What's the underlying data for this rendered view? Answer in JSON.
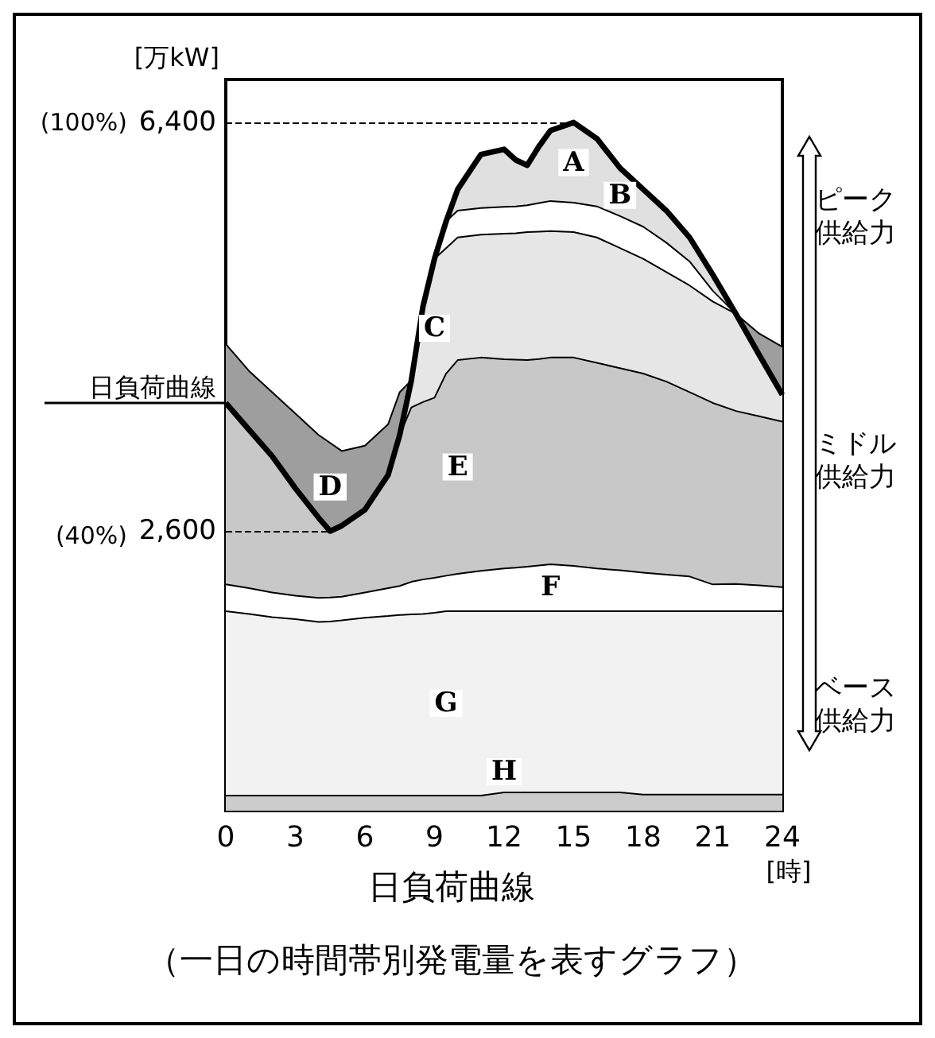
{
  "chart_data": {
    "type": "area",
    "stacked": true,
    "title": "日負荷曲線",
    "subtitle": "（一日の時間帯別発電量を表すグラフ）",
    "xlabel": "[時]",
    "ylabel": "[万kW]",
    "x": [
      0,
      1,
      2,
      3,
      4,
      4.5,
      5,
      6,
      7,
      7.5,
      8,
      8.5,
      9,
      9.5,
      10,
      11,
      12,
      12.5,
      13,
      13.5,
      14,
      15,
      16,
      17,
      18,
      19,
      20,
      21,
      22,
      23,
      24
    ],
    "series": [
      {
        "name": "H",
        "color": "#cccccc",
        "values": [
          140,
          140,
          140,
          140,
          140,
          140,
          140,
          140,
          140,
          140,
          140,
          140,
          140,
          140,
          140,
          140,
          170,
          170,
          170,
          170,
          170,
          170,
          170,
          170,
          150,
          150,
          150,
          150,
          150,
          150,
          150
        ]
      },
      {
        "name": "G",
        "color": "#f2f2f2",
        "values": [
          1715,
          1690,
          1660,
          1641,
          1615,
          1620,
          1630,
          1655,
          1670,
          1680,
          1685,
          1690,
          1700,
          1715,
          1715,
          1715,
          1685,
          1685,
          1685,
          1685,
          1685,
          1685,
          1685,
          1685,
          1705,
          1705,
          1705,
          1705,
          1705,
          1705,
          1705
        ]
      },
      {
        "name": "F",
        "color": "#ffffff",
        "values": [
          249,
          240,
          229,
          219,
          224,
          222,
          220,
          234,
          260,
          270,
          303,
          320,
          325,
          330,
          348,
          375,
          398,
          405,
          415,
          425,
          437,
          422,
          398,
          380,
          358,
          340,
          323,
          249,
          254,
          240,
          224
        ]
      },
      {
        "name": "E",
        "color": "#c8c8c8",
        "values": [
          1688,
          1473,
          1267,
          998,
          745,
          618,
          660,
          770,
          1052,
          1404,
          1622,
          1650,
          1676,
          1880,
          1987,
          1984,
          1946,
          1935,
          1920,
          1920,
          1922,
          1937,
          1912,
          1880,
          1852,
          1795,
          1714,
          1688,
          1608,
          1573,
          1539
        ]
      },
      {
        "name": "C",
        "color": "#e6e6e6",
        "values": [
          null,
          null,
          null,
          null,
          null,
          null,
          null,
          null,
          null,
          0,
          250,
          886,
          1292,
          1167,
          1141,
          1142,
          1167,
          1175,
          1191,
          1185,
          1177,
          1167,
          1166,
          1117,
          1068,
          1019,
          992,
          943,
          903,
          571,
          249
        ]
      },
      {
        "name": "D",
        "color": "#9e9e9e",
        "values": [
          547,
          547,
          596,
          695,
          770,
          820,
          695,
          596,
          472,
          398,
          0,
          null,
          null,
          null,
          null,
          null,
          null,
          null,
          null,
          null,
          null,
          null,
          null,
          null,
          null,
          null,
          null,
          null,
          0,
          198,
          446
        ]
      },
      {
        "name": "B",
        "color": "#ffffff",
        "values": [
          null,
          null,
          null,
          null,
          null,
          null,
          null,
          null,
          null,
          null,
          null,
          null,
          0,
          248,
          249,
          249,
          249,
          250,
          249,
          265,
          279,
          274,
          289,
          298,
          298,
          273,
          224,
          100,
          0,
          null,
          null
        ]
      },
      {
        "name": "A",
        "color": "#e0e0e0",
        "values": [
          null,
          null,
          null,
          null,
          null,
          null,
          null,
          null,
          null,
          null,
          null,
          null,
          null,
          0,
          198,
          497,
          536,
          432,
          372,
          526,
          655,
          745,
          631,
          447,
          347,
          298,
          223,
          149,
          0,
          null,
          null
        ]
      },
      {
        "name": "日負荷曲線",
        "type": "line",
        "color": "#000000",
        "values": [
          3792,
          3543,
          3296,
          2998,
          2724,
          2600,
          2650,
          2799,
          3122,
          3494,
          4000,
          4686,
          5133,
          5480,
          5778,
          6102,
          6151,
          6052,
          6002,
          6176,
          6325,
          6400,
          6251,
          5977,
          5778,
          5580,
          5331,
          4984,
          4620,
          4239,
          3867
        ]
      }
    ],
    "xlim": [
      0,
      24
    ],
    "xticks": [
      0,
      3,
      6,
      9,
      12,
      15,
      18,
      21,
      24
    ],
    "ylim": [
      0,
      6800
    ],
    "yticks": [
      {
        "value": 2600,
        "label": "2,600"
      },
      {
        "value": 6400,
        "label": "6,400"
      }
    ],
    "y2lim": [
      0,
      106.25
    ],
    "y2ticks": [
      {
        "value": 40,
        "label": "(40%)"
      },
      {
        "value": 100,
        "label": "(100%)"
      }
    ],
    "ref_lines": [
      {
        "axis": "y",
        "value": 6400,
        "line_style": "dashed"
      },
      {
        "axis": "y",
        "value": 2600,
        "line_style": "dashed"
      }
    ],
    "annotations": [
      "ピーク供給力",
      "ミドル供給力",
      "ベース供給力"
    ],
    "legend": false,
    "grid": false,
    "marker": "none"
  }
}
